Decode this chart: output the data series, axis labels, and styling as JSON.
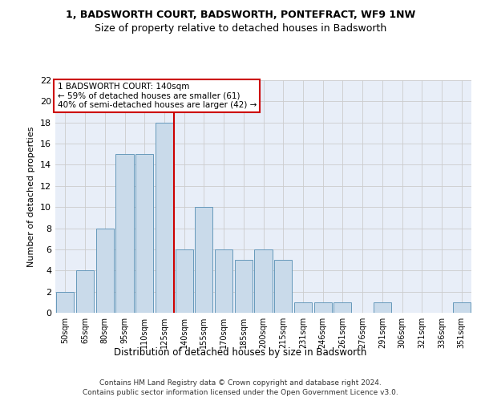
{
  "title1": "1, BADSWORTH COURT, BADSWORTH, PONTEFRACT, WF9 1NW",
  "title2": "Size of property relative to detached houses in Badsworth",
  "xlabel": "Distribution of detached houses by size in Badsworth",
  "ylabel": "Number of detached properties",
  "bar_labels": [
    "50sqm",
    "65sqm",
    "80sqm",
    "95sqm",
    "110sqm",
    "125sqm",
    "140sqm",
    "155sqm",
    "170sqm",
    "185sqm",
    "200sqm",
    "215sqm",
    "231sqm",
    "246sqm",
    "261sqm",
    "276sqm",
    "291sqm",
    "306sqm",
    "321sqm",
    "336sqm",
    "351sqm"
  ],
  "bar_values": [
    2,
    4,
    8,
    15,
    15,
    18,
    6,
    10,
    6,
    5,
    6,
    5,
    1,
    1,
    1,
    0,
    1,
    0,
    0,
    0,
    1
  ],
  "bar_color": "#c9daea",
  "bar_edge_color": "#6699bb",
  "vline_index": 6,
  "vline_color": "#cc0000",
  "annotation_line1": "1 BADSWORTH COURT: 140sqm",
  "annotation_line2": "← 59% of detached houses are smaller (61)",
  "annotation_line3": "40% of semi-detached houses are larger (42) →",
  "annotation_box_facecolor": "#ffffff",
  "annotation_box_edgecolor": "#cc0000",
  "ylim": [
    0,
    22
  ],
  "yticks": [
    0,
    2,
    4,
    6,
    8,
    10,
    12,
    14,
    16,
    18,
    20,
    22
  ],
  "grid_color": "#cccccc",
  "bg_color": "#ffffff",
  "ax_bg_color": "#e8eef8",
  "title1_fontsize": 9,
  "title2_fontsize": 9,
  "footnote1": "Contains HM Land Registry data © Crown copyright and database right 2024.",
  "footnote2": "Contains public sector information licensed under the Open Government Licence v3.0."
}
